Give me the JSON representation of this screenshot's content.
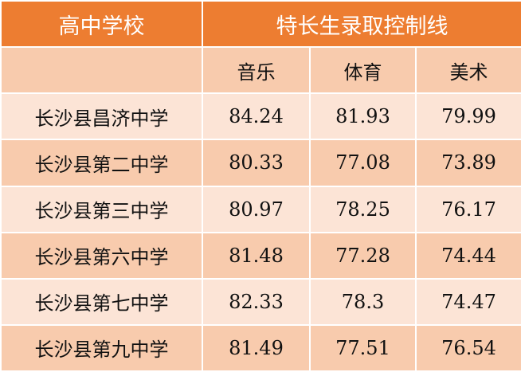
{
  "header": {
    "school": "高中学校",
    "group": "特长生录取控制线"
  },
  "subheaders": [
    "音乐",
    "体育",
    "美术"
  ],
  "colors": {
    "header": "#ED7D31",
    "row_light": "#FCE4D6",
    "row_dark": "#F8CBAD"
  },
  "rows": [
    {
      "school": "长沙县昌济中学",
      "music": "84.24",
      "sports": "81.93",
      "art": "79.99"
    },
    {
      "school": "长沙县第二中学",
      "music": "80.33",
      "sports": "77.08",
      "art": "73.89"
    },
    {
      "school": "长沙县第三中学",
      "music": "80.97",
      "sports": "78.25",
      "art": "76.17"
    },
    {
      "school": "长沙县第六中学",
      "music": "81.48",
      "sports": "77.28",
      "art": "74.44"
    },
    {
      "school": "长沙县第七中学",
      "music": "82.33",
      "sports": "78.3",
      "art": "74.47"
    },
    {
      "school": "长沙县第九中学",
      "music": "81.49",
      "sports": "77.51",
      "art": "76.54"
    }
  ]
}
